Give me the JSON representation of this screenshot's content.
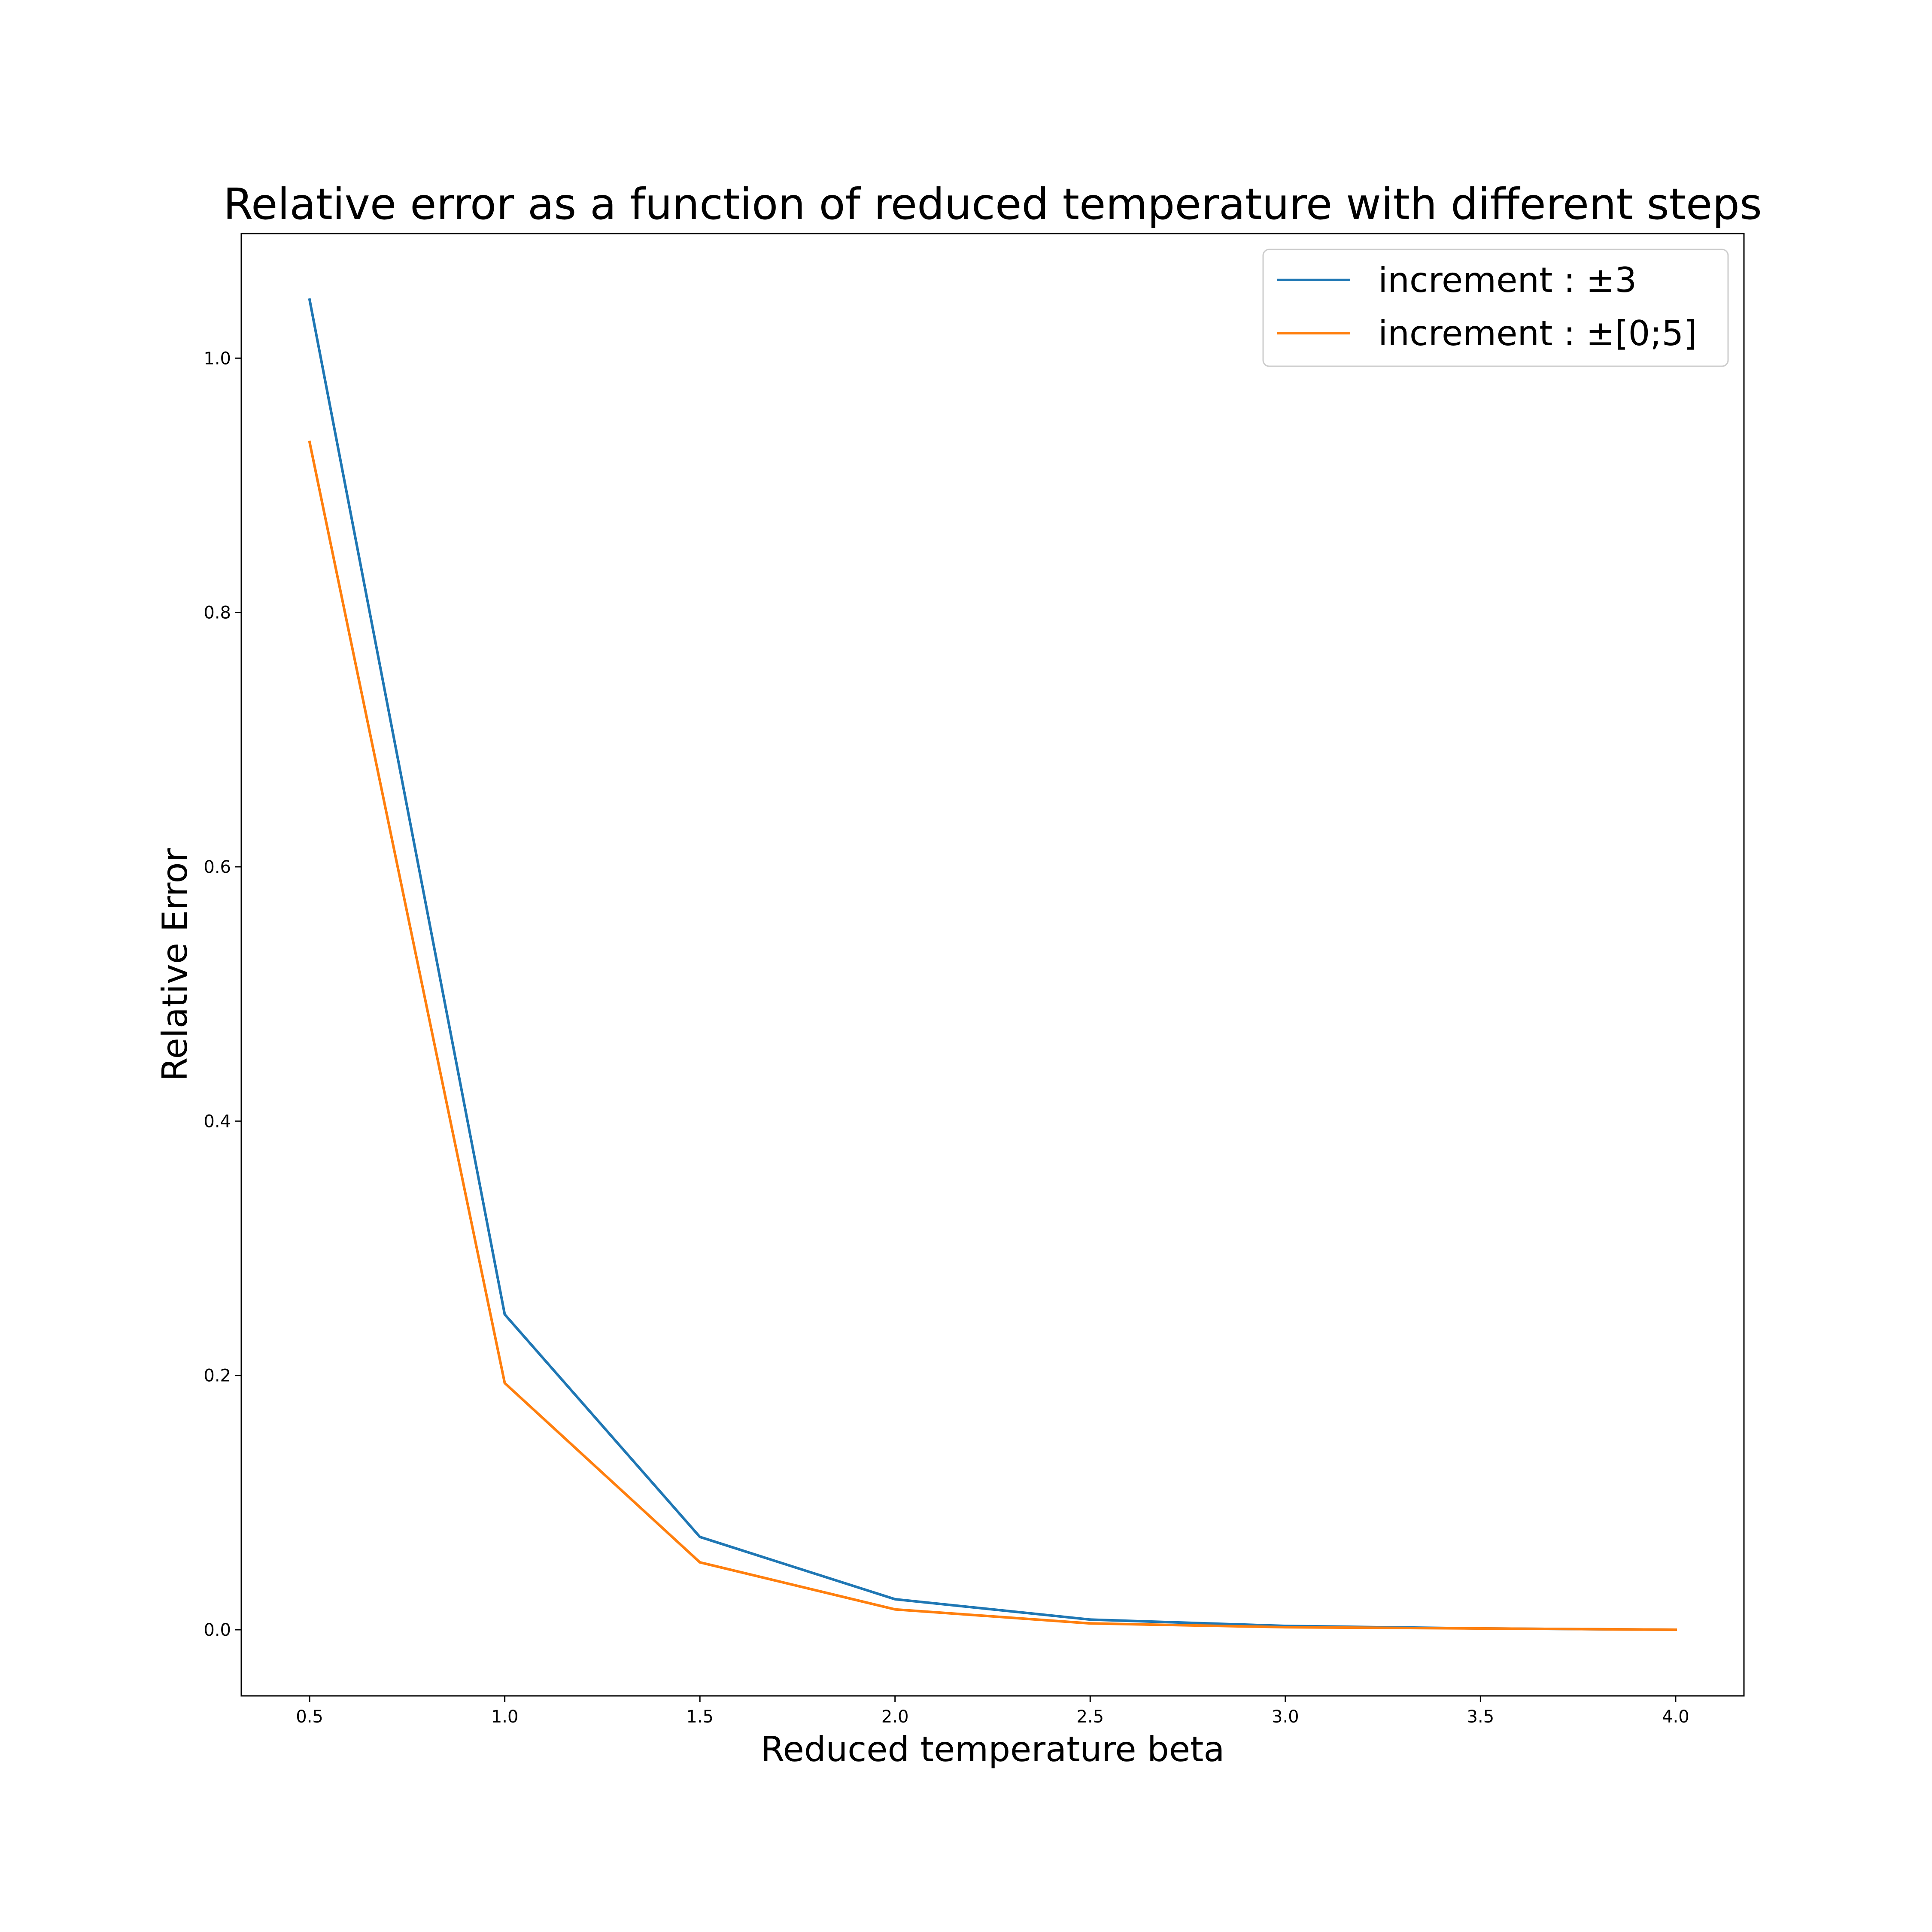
{
  "chart_data": {
    "type": "line",
    "title": "Relative error as a function of reduced temperature with different steps",
    "xlabel": "Reduced temperature beta",
    "ylabel": "Relative Error",
    "xlim": [
      0.325,
      4.175
    ],
    "ylim": [
      -0.052,
      1.098
    ],
    "xticks": [
      "0.5",
      "1.0",
      "1.5",
      "2.0",
      "2.5",
      "3.0",
      "3.5",
      "4.0"
    ],
    "yticks": [
      "0.0",
      "0.2",
      "0.4",
      "0.6",
      "0.8",
      "1.0"
    ],
    "x": [
      0.5,
      1.0,
      1.5,
      2.0,
      2.5,
      3.0,
      3.5,
      4.0
    ],
    "series": [
      {
        "name": "increment : ±3",
        "color": "#1f77b4",
        "values": [
          1.046,
          0.248,
          0.073,
          0.024,
          0.008,
          0.003,
          0.001,
          0.0
        ]
      },
      {
        "name": "increment : ±[0;5]",
        "color": "#ff7f0e",
        "values": [
          0.934,
          0.194,
          0.053,
          0.016,
          0.005,
          0.002,
          0.001,
          0.0
        ]
      }
    ],
    "grid": false,
    "legend": "top-right"
  }
}
